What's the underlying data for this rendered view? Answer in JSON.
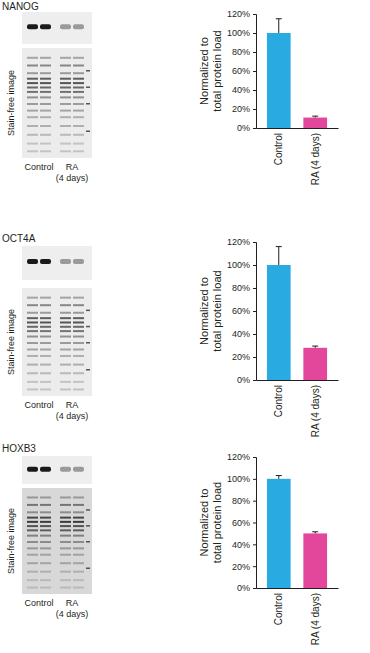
{
  "chart_data": [
    {
      "type": "bar",
      "title": "NANOG",
      "annotations": [
        "Stain-free image",
        "Control",
        "RA (4 days)"
      ],
      "y_label": "Normalized to total protein load",
      "categories": [
        "Control",
        "RA (4 days)"
      ],
      "values": [
        100,
        11
      ],
      "errors": [
        15,
        1.5
      ],
      "colors": [
        "#29abe2",
        "#e2479b"
      ],
      "ylim": [
        0,
        120
      ],
      "yticks": [
        {
          "value": 0,
          "label": "0%"
        },
        {
          "value": 20,
          "label": "20%"
        },
        {
          "value": 40,
          "label": "40%"
        },
        {
          "value": 60,
          "label": "60%"
        },
        {
          "value": 80,
          "label": "80%"
        },
        {
          "value": 100,
          "label": "100%"
        },
        {
          "value": 120,
          "label": "120%"
        }
      ]
    },
    {
      "type": "bar",
      "title": "OCT4A",
      "annotations": [
        "Stain-free image",
        "Control",
        "RA (4 days)"
      ],
      "y_label": "Normalized to total protein load",
      "categories": [
        "Control",
        "RA (4 days)"
      ],
      "values": [
        100,
        28
      ],
      "errors": [
        16,
        1.5
      ],
      "colors": [
        "#29abe2",
        "#e2479b"
      ],
      "ylim": [
        0,
        120
      ],
      "yticks": [
        {
          "value": 0,
          "label": "0%"
        },
        {
          "value": 20,
          "label": "20%"
        },
        {
          "value": 40,
          "label": "40%"
        },
        {
          "value": 60,
          "label": "60%"
        },
        {
          "value": 80,
          "label": "80%"
        },
        {
          "value": 100,
          "label": "100%"
        },
        {
          "value": 120,
          "label": "120%"
        }
      ]
    },
    {
      "type": "bar",
      "title": "HOXB3",
      "annotations": [
        "Stain-free image",
        "Control",
        "RA (4 days)"
      ],
      "y_label": "Normalized to total protein load",
      "categories": [
        "Control",
        "RA (4 days)"
      ],
      "values": [
        100,
        50
      ],
      "errors": [
        3,
        1.5
      ],
      "colors": [
        "#29abe2",
        "#e2479b"
      ],
      "ylim": [
        0,
        120
      ],
      "yticks": [
        {
          "value": 0,
          "label": "0%"
        },
        {
          "value": 20,
          "label": "20%"
        },
        {
          "value": 40,
          "label": "40%"
        },
        {
          "value": 60,
          "label": "60%"
        },
        {
          "value": 80,
          "label": "80%"
        },
        {
          "value": 100,
          "label": "100%"
        },
        {
          "value": 120,
          "label": "120%"
        }
      ]
    }
  ]
}
